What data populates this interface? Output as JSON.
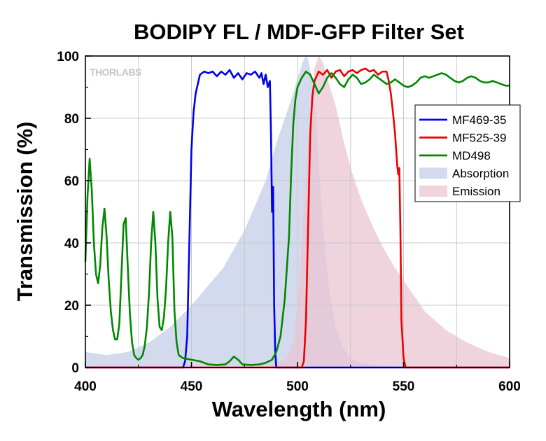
{
  "chart_data": {
    "type": "line",
    "title": "BODIPY FL / MDF-GFP Filter Set",
    "xlabel": "Wavelength (nm)",
    "ylabel": "Transmission (%)",
    "xlim": [
      400,
      600
    ],
    "ylim": [
      0,
      100
    ],
    "x_ticks": [
      400,
      450,
      500,
      550,
      600
    ],
    "y_ticks": [
      0,
      20,
      40,
      60,
      80,
      100
    ],
    "grid": true,
    "legend_position": "right",
    "watermark": "THORLABS",
    "series": [
      {
        "name": "MF469-35",
        "kind": "line",
        "color": "#0000ee",
        "points": [
          [
            400,
            0
          ],
          [
            446,
            0
          ],
          [
            447,
            2
          ],
          [
            448,
            10
          ],
          [
            449,
            40
          ],
          [
            450,
            70
          ],
          [
            451,
            82
          ],
          [
            452,
            88
          ],
          [
            453,
            91
          ],
          [
            454,
            94
          ],
          [
            456,
            95
          ],
          [
            458,
            94.5
          ],
          [
            460,
            95
          ],
          [
            462,
            93.5
          ],
          [
            464,
            95
          ],
          [
            466,
            94
          ],
          [
            468,
            95.5
          ],
          [
            470,
            93
          ],
          [
            472,
            94.5
          ],
          [
            474,
            92.5
          ],
          [
            476,
            94.5
          ],
          [
            478,
            94
          ],
          [
            480,
            95
          ],
          [
            482,
            93
          ],
          [
            483,
            94.5
          ],
          [
            484,
            91
          ],
          [
            485,
            94
          ],
          [
            486,
            90
          ],
          [
            487,
            92
          ],
          [
            487.5,
            75
          ],
          [
            488,
            50
          ],
          [
            488.5,
            58
          ],
          [
            489,
            20
          ],
          [
            489.5,
            5
          ],
          [
            490,
            0
          ],
          [
            600,
            0
          ]
        ]
      },
      {
        "name": "MF525-39",
        "kind": "line",
        "color": "#ee0000",
        "points": [
          [
            400,
            0
          ],
          [
            502,
            0
          ],
          [
            503,
            2
          ],
          [
            504,
            15
          ],
          [
            505,
            45
          ],
          [
            506,
            75
          ],
          [
            507,
            87
          ],
          [
            508,
            92
          ],
          [
            510,
            95
          ],
          [
            512,
            94
          ],
          [
            514,
            95.5
          ],
          [
            516,
            93
          ],
          [
            518,
            95
          ],
          [
            520,
            95.5
          ],
          [
            522,
            93.5
          ],
          [
            524,
            95
          ],
          [
            526,
            95.5
          ],
          [
            528,
            94.5
          ],
          [
            530,
            95.5
          ],
          [
            532,
            96
          ],
          [
            534,
            95
          ],
          [
            536,
            95.5
          ],
          [
            538,
            94
          ],
          [
            540,
            95
          ],
          [
            542,
            95
          ],
          [
            543,
            92
          ],
          [
            544,
            88
          ],
          [
            545,
            82
          ],
          [
            546,
            75
          ],
          [
            547,
            65
          ],
          [
            547.5,
            62
          ],
          [
            548,
            64
          ],
          [
            548.5,
            45
          ],
          [
            549,
            15
          ],
          [
            550,
            3
          ],
          [
            551,
            0
          ],
          [
            600,
            0
          ]
        ]
      },
      {
        "name": "MD498",
        "kind": "line",
        "color": "#008800",
        "points": [
          [
            400,
            34
          ],
          [
            401,
            55
          ],
          [
            402,
            67
          ],
          [
            403,
            57
          ],
          [
            404,
            40
          ],
          [
            405,
            30
          ],
          [
            406,
            27
          ],
          [
            407,
            33
          ],
          [
            408,
            45
          ],
          [
            409,
            51
          ],
          [
            410,
            42
          ],
          [
            411,
            28
          ],
          [
            412,
            18
          ],
          [
            413,
            12
          ],
          [
            414,
            9
          ],
          [
            415,
            9
          ],
          [
            416,
            14
          ],
          [
            417,
            30
          ],
          [
            418,
            46
          ],
          [
            419,
            48
          ],
          [
            420,
            32
          ],
          [
            421,
            17
          ],
          [
            422,
            8
          ],
          [
            423,
            4
          ],
          [
            424,
            3
          ],
          [
            425,
            2.5
          ],
          [
            426,
            3
          ],
          [
            427,
            4
          ],
          [
            428,
            7
          ],
          [
            429,
            13
          ],
          [
            430,
            24
          ],
          [
            431,
            40
          ],
          [
            432,
            50
          ],
          [
            433,
            40
          ],
          [
            434,
            22
          ],
          [
            435,
            13
          ],
          [
            436,
            12
          ],
          [
            437,
            16
          ],
          [
            438,
            25
          ],
          [
            439,
            40
          ],
          [
            440,
            50
          ],
          [
            441,
            42
          ],
          [
            442,
            18
          ],
          [
            443,
            8
          ],
          [
            444,
            4
          ],
          [
            446,
            3
          ],
          [
            450,
            2.5
          ],
          [
            454,
            2
          ],
          [
            458,
            1
          ],
          [
            462,
            0.8
          ],
          [
            466,
            1
          ],
          [
            468,
            2
          ],
          [
            470,
            3.5
          ],
          [
            472,
            2.5
          ],
          [
            474,
            1
          ],
          [
            478,
            0.8
          ],
          [
            482,
            1
          ],
          [
            485,
            1.5
          ],
          [
            488,
            2.5
          ],
          [
            490,
            5
          ],
          [
            492,
            10
          ],
          [
            494,
            22
          ],
          [
            496,
            42
          ],
          [
            497,
            62
          ],
          [
            498,
            78
          ],
          [
            499,
            86
          ],
          [
            500,
            90
          ],
          [
            502,
            93
          ],
          [
            504,
            95
          ],
          [
            506,
            94
          ],
          [
            508,
            91
          ],
          [
            510,
            88
          ],
          [
            512,
            90
          ],
          [
            514,
            93
          ],
          [
            516,
            94.5
          ],
          [
            518,
            93
          ],
          [
            520,
            91
          ],
          [
            522,
            90
          ],
          [
            524,
            92.5
          ],
          [
            526,
            94
          ],
          [
            528,
            93
          ],
          [
            530,
            91
          ],
          [
            532,
            91.5
          ],
          [
            534,
            92.5
          ],
          [
            536,
            94
          ],
          [
            538,
            93
          ],
          [
            540,
            92
          ],
          [
            542,
            91
          ],
          [
            544,
            91.5
          ],
          [
            546,
            92.5
          ],
          [
            548,
            91.5
          ],
          [
            550,
            90.5
          ],
          [
            552,
            90
          ],
          [
            554,
            90.5
          ],
          [
            556,
            91.5
          ],
          [
            558,
            93
          ],
          [
            560,
            93.5
          ],
          [
            562,
            93
          ],
          [
            564,
            93.5
          ],
          [
            566,
            94
          ],
          [
            568,
            94.5
          ],
          [
            570,
            94
          ],
          [
            572,
            93
          ],
          [
            574,
            92
          ],
          [
            576,
            91.5
          ],
          [
            578,
            92
          ],
          [
            580,
            93
          ],
          [
            582,
            93.5
          ],
          [
            584,
            93
          ],
          [
            586,
            92
          ],
          [
            588,
            91.5
          ],
          [
            590,
            91.5
          ],
          [
            592,
            92
          ],
          [
            594,
            91.5
          ],
          [
            596,
            91
          ],
          [
            598,
            90.5
          ],
          [
            600,
            90.5
          ]
        ]
      },
      {
        "name": "Absorption",
        "kind": "area",
        "color": "#c5cde8",
        "points": [
          [
            400,
            5
          ],
          [
            410,
            4
          ],
          [
            420,
            5
          ],
          [
            430,
            8
          ],
          [
            440,
            13
          ],
          [
            450,
            20
          ],
          [
            460,
            28
          ],
          [
            465,
            32
          ],
          [
            470,
            38
          ],
          [
            475,
            44
          ],
          [
            480,
            52
          ],
          [
            485,
            60
          ],
          [
            490,
            72
          ],
          [
            495,
            82
          ],
          [
            498,
            88
          ],
          [
            500,
            93
          ],
          [
            502,
            97
          ],
          [
            503,
            99
          ],
          [
            504,
            100
          ],
          [
            505,
            99
          ],
          [
            507,
            92
          ],
          [
            509,
            78
          ],
          [
            511,
            55
          ],
          [
            513,
            38
          ],
          [
            515,
            25
          ],
          [
            518,
            13
          ],
          [
            521,
            7
          ],
          [
            525,
            3
          ],
          [
            530,
            1.5
          ],
          [
            540,
            0.5
          ],
          [
            560,
            0
          ],
          [
            600,
            0
          ]
        ]
      },
      {
        "name": "Emission",
        "kind": "area",
        "color": "#ebc5d2",
        "points": [
          [
            400,
            0
          ],
          [
            480,
            0
          ],
          [
            490,
            1
          ],
          [
            495,
            3
          ],
          [
            498,
            8
          ],
          [
            500,
            20
          ],
          [
            502,
            40
          ],
          [
            504,
            62
          ],
          [
            506,
            82
          ],
          [
            508,
            96
          ],
          [
            510,
            100
          ],
          [
            512,
            98
          ],
          [
            514,
            93
          ],
          [
            518,
            84
          ],
          [
            522,
            72
          ],
          [
            526,
            62
          ],
          [
            530,
            54
          ],
          [
            535,
            46
          ],
          [
            540,
            39
          ],
          [
            545,
            33
          ],
          [
            550,
            28
          ],
          [
            555,
            23
          ],
          [
            560,
            18
          ],
          [
            565,
            15
          ],
          [
            570,
            12
          ],
          [
            575,
            10
          ],
          [
            580,
            8
          ],
          [
            585,
            6.5
          ],
          [
            590,
            5
          ],
          [
            595,
            4
          ],
          [
            600,
            3
          ]
        ]
      }
    ]
  }
}
